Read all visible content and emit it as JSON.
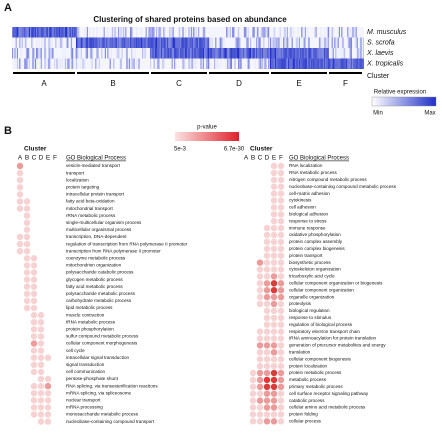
{
  "panel_a": {
    "label": "A",
    "title": "Clustering of shared proteins based on abundance",
    "species": [
      "M. musculus",
      "S. scrofa",
      "X. laevis",
      "X. tropicalis"
    ],
    "cluster_label": "Cluster",
    "clusters": [
      "A",
      "B",
      "C",
      "D",
      "E",
      "F"
    ],
    "legend": {
      "title": "Relative expression",
      "min": "Min",
      "max": "Max"
    }
  },
  "panel_b": {
    "label": "B",
    "legend": {
      "title": "p-value",
      "low": "5e-3",
      "high": "6.7e-30"
    },
    "cluster_label": "Cluster",
    "clusters": [
      "A",
      "B",
      "C",
      "D",
      "E",
      "F"
    ],
    "column_header": "GO Biological Process",
    "left": [
      {
        "term": "vesicle-mediated transport",
        "levels": [
          2,
          0,
          0,
          0,
          0,
          0
        ]
      },
      {
        "term": "transport",
        "levels": [
          1,
          0,
          0,
          0,
          0,
          0
        ]
      },
      {
        "term": "localization",
        "levels": [
          1,
          0,
          0,
          0,
          0,
          0
        ]
      },
      {
        "term": "protein targeting",
        "levels": [
          1,
          0,
          0,
          0,
          0,
          0
        ]
      },
      {
        "term": "intracellular protein transport",
        "levels": [
          1,
          0,
          0,
          0,
          0,
          0
        ]
      },
      {
        "term": "fatty acid beta-oxidation",
        "levels": [
          1,
          1,
          0,
          0,
          0,
          0
        ]
      },
      {
        "term": "mitochondrial transport",
        "levels": [
          1,
          1,
          0,
          0,
          0,
          0
        ]
      },
      {
        "term": "rRNA metabolic process",
        "levels": [
          0,
          1,
          0,
          0,
          0,
          0
        ]
      },
      {
        "term": "single-multicellular organism process",
        "levels": [
          0,
          1,
          0,
          0,
          0,
          0
        ]
      },
      {
        "term": "multicellular organismal process",
        "levels": [
          0,
          1,
          0,
          0,
          0,
          0
        ]
      },
      {
        "term": "transcription, DNA-dependent",
        "levels": [
          1,
          1,
          0,
          0,
          0,
          0
        ]
      },
      {
        "term": "regulation of transcription from RNA polymerase II promoter",
        "levels": [
          1,
          1,
          0,
          0,
          0,
          0
        ]
      },
      {
        "term": "transcription from RNA polymerase II promoter",
        "levels": [
          1,
          1,
          0,
          0,
          0,
          0
        ]
      },
      {
        "term": "coenzyme metabolic process",
        "levels": [
          0,
          1,
          1,
          0,
          0,
          0
        ]
      },
      {
        "term": "mitochondrion organization",
        "levels": [
          0,
          1,
          1,
          0,
          0,
          0
        ]
      },
      {
        "term": "polysaccharide catabolic process",
        "levels": [
          0,
          1,
          1,
          0,
          0,
          0
        ]
      },
      {
        "term": "glycogen metabolic process",
        "levels": [
          0,
          1,
          1,
          0,
          0,
          0
        ]
      },
      {
        "term": "fatty acid metabolic process",
        "levels": [
          0,
          1,
          1,
          0,
          0,
          0
        ]
      },
      {
        "term": "polysaccharide metabolic process",
        "levels": [
          0,
          1,
          1,
          0,
          0,
          0
        ]
      },
      {
        "term": "carbohydrate metabolic process",
        "levels": [
          0,
          1,
          1,
          0,
          0,
          0
        ]
      },
      {
        "term": "lipid metabolic process",
        "levels": [
          0,
          1,
          1,
          0,
          0,
          0
        ]
      },
      {
        "term": "muscle contraction",
        "levels": [
          0,
          0,
          1,
          1,
          0,
          0
        ]
      },
      {
        "term": "tRNA metabolic process",
        "levels": [
          0,
          0,
          1,
          1,
          0,
          0
        ]
      },
      {
        "term": "protein phosphorylation",
        "levels": [
          0,
          0,
          1,
          1,
          0,
          0
        ]
      },
      {
        "term": "sulfur compound metabolic process",
        "levels": [
          0,
          0,
          1,
          1,
          0,
          0
        ]
      },
      {
        "term": "cellular component morphogenesis",
        "levels": [
          0,
          0,
          2,
          1,
          0,
          0
        ]
      },
      {
        "term": "cell cycle",
        "levels": [
          0,
          0,
          1,
          1,
          0,
          0
        ]
      },
      {
        "term": "intracellular signal transduction",
        "levels": [
          0,
          0,
          1,
          1,
          1,
          0
        ]
      },
      {
        "term": "signal transduction",
        "levels": [
          0,
          0,
          1,
          1,
          0,
          0
        ]
      },
      {
        "term": "cell communication",
        "levels": [
          0,
          0,
          1,
          1,
          0,
          0
        ]
      },
      {
        "term": "pentose-phosphate shunt",
        "levels": [
          0,
          0,
          0,
          1,
          1,
          0
        ]
      },
      {
        "term": "RNA splicing, via transesterification reactions",
        "levels": [
          0,
          0,
          1,
          1,
          2,
          0
        ]
      },
      {
        "term": "mRNA splicing, via spliceosome",
        "levels": [
          0,
          0,
          1,
          1,
          1,
          0
        ]
      },
      {
        "term": "nuclear transport",
        "levels": [
          0,
          0,
          1,
          1,
          1,
          0
        ]
      },
      {
        "term": "mRNA processing",
        "levels": [
          0,
          0,
          1,
          1,
          1,
          0
        ]
      },
      {
        "term": "monosaccharide metabolic process",
        "levels": [
          0,
          0,
          1,
          1,
          1,
          0
        ]
      },
      {
        "term": "nucleobase-containing compound transport",
        "levels": [
          0,
          0,
          0,
          1,
          1,
          0
        ]
      }
    ],
    "right": [
      {
        "term": "RNA localization",
        "levels": [
          0,
          0,
          0,
          0,
          1,
          1
        ]
      },
      {
        "term": "RNA metabolic process",
        "levels": [
          0,
          0,
          0,
          0,
          1,
          1
        ]
      },
      {
        "term": "nitrogen compound metabolic process",
        "levels": [
          0,
          0,
          0,
          0,
          1,
          1
        ]
      },
      {
        "term": "nucleobase-containing compound metabolic process",
        "levels": [
          0,
          0,
          0,
          0,
          1,
          1
        ]
      },
      {
        "term": "cell-matrix adhesion",
        "levels": [
          0,
          0,
          0,
          0,
          1,
          1
        ]
      },
      {
        "term": "cytokinesis",
        "levels": [
          0,
          0,
          0,
          0,
          1,
          1
        ]
      },
      {
        "term": "cell adhesion",
        "levels": [
          0,
          0,
          0,
          0,
          1,
          1
        ]
      },
      {
        "term": "biological adhesion",
        "levels": [
          0,
          0,
          0,
          0,
          1,
          1
        ]
      },
      {
        "term": "response to stress",
        "levels": [
          0,
          0,
          0,
          0,
          1,
          1
        ]
      },
      {
        "term": "immune response",
        "levels": [
          0,
          0,
          0,
          1,
          1,
          1
        ]
      },
      {
        "term": "oxidative phosphorylation",
        "levels": [
          0,
          0,
          0,
          1,
          1,
          1
        ]
      },
      {
        "term": "protein complex assembly",
        "levels": [
          0,
          0,
          0,
          1,
          1,
          1
        ]
      },
      {
        "term": "protein complex biogenesis",
        "levels": [
          0,
          0,
          0,
          1,
          1,
          1
        ]
      },
      {
        "term": "protein transport",
        "levels": [
          0,
          0,
          0,
          1,
          1,
          1
        ]
      },
      {
        "term": "biosynthetic process",
        "levels": [
          0,
          0,
          2,
          1,
          1,
          1
        ]
      },
      {
        "term": "cytoskeleton organization",
        "levels": [
          0,
          0,
          1,
          1,
          1,
          1
        ]
      },
      {
        "term": "tricarboxylic acid cycle",
        "levels": [
          0,
          0,
          1,
          1,
          2,
          1
        ]
      },
      {
        "term": "cellular component organization or biogenesis",
        "levels": [
          0,
          0,
          1,
          2,
          3,
          2
        ]
      },
      {
        "term": "cellular component organization",
        "levels": [
          0,
          0,
          1,
          2,
          3,
          2
        ]
      },
      {
        "term": "organelle organization",
        "levels": [
          0,
          0,
          1,
          2,
          2,
          2
        ]
      },
      {
        "term": "proteolysis",
        "levels": [
          0,
          0,
          1,
          1,
          2,
          1
        ]
      },
      {
        "term": "biological regulation",
        "levels": [
          0,
          0,
          0,
          1,
          1,
          1
        ]
      },
      {
        "term": "response to stimulus",
        "levels": [
          0,
          0,
          0,
          1,
          1,
          1
        ]
      },
      {
        "term": "regulation of biological process",
        "levels": [
          0,
          0,
          0,
          1,
          1,
          1
        ]
      },
      {
        "term": "respiratory electron transport chain",
        "levels": [
          0,
          0,
          1,
          1,
          1,
          1
        ]
      },
      {
        "term": "tRNA aminoacylation for protein translation",
        "levels": [
          0,
          0,
          1,
          1,
          1,
          1
        ]
      },
      {
        "term": "generation of precursor metabolites and energy",
        "levels": [
          0,
          0,
          2,
          2,
          2,
          1
        ]
      },
      {
        "term": "translation",
        "levels": [
          0,
          0,
          1,
          1,
          2,
          1
        ]
      },
      {
        "term": "cellular component biogenesis",
        "levels": [
          0,
          0,
          1,
          1,
          1,
          1
        ]
      },
      {
        "term": "protein localization",
        "levels": [
          0,
          0,
          1,
          1,
          1,
          1
        ]
      },
      {
        "term": "protein metabolic process",
        "levels": [
          0,
          1,
          2,
          2,
          3,
          2
        ]
      },
      {
        "term": "metabolic process",
        "levels": [
          0,
          1,
          2,
          3,
          3,
          2
        ]
      },
      {
        "term": "primary metabolic process",
        "levels": [
          0,
          1,
          2,
          3,
          3,
          2
        ]
      },
      {
        "term": "cell surface receptor signaling pathway",
        "levels": [
          0,
          1,
          1,
          2,
          2,
          1
        ]
      },
      {
        "term": "catabolic process",
        "levels": [
          0,
          1,
          2,
          2,
          2,
          1
        ]
      },
      {
        "term": "cellular amino acid metabolic process",
        "levels": [
          0,
          1,
          1,
          2,
          2,
          1
        ]
      },
      {
        "term": "protein folding",
        "levels": [
          0,
          1,
          1,
          1,
          1,
          1
        ]
      },
      {
        "term": "cellular process",
        "levels": [
          0,
          1,
          1,
          2,
          2,
          1
        ]
      }
    ]
  }
}
